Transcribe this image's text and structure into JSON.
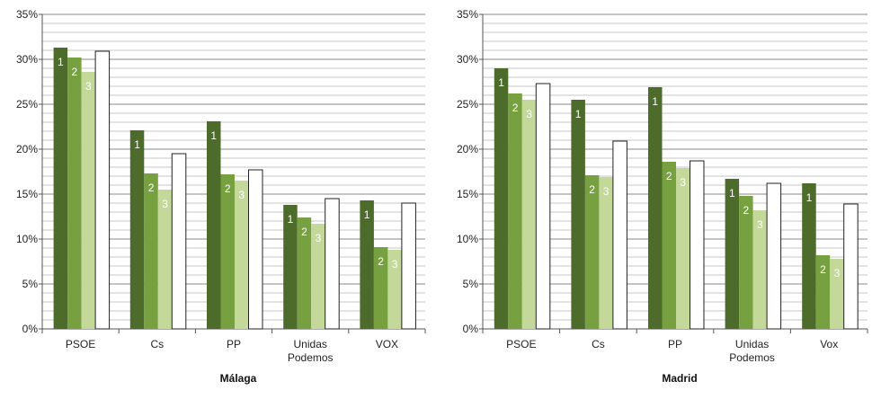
{
  "chart_data": [
    {
      "type": "bar",
      "title": "Málaga",
      "ylim": [
        0,
        35
      ],
      "y_ticks": [
        "0%",
        "5%",
        "10%",
        "15%",
        "20%",
        "25%",
        "30%",
        "35%"
      ],
      "grid": true,
      "categories": [
        [
          "PSOE"
        ],
        [
          "Cs"
        ],
        [
          "PP"
        ],
        [
          "Unidas",
          "Podemos"
        ],
        [
          "VOX"
        ]
      ],
      "series": [
        {
          "label": "1",
          "values": [
            31.3,
            22.1,
            23.1,
            13.8,
            14.3
          ]
        },
        {
          "label": "2",
          "values": [
            30.2,
            17.3,
            17.2,
            12.4,
            9.1
          ]
        },
        {
          "label": "3",
          "values": [
            28.6,
            15.5,
            16.5,
            11.7,
            8.8
          ]
        },
        {
          "label": "",
          "values": [
            30.9,
            19.5,
            17.7,
            14.5,
            14.0
          ]
        }
      ]
    },
    {
      "type": "bar",
      "title": "Madrid",
      "ylim": [
        0,
        35
      ],
      "y_ticks": [
        "0%",
        "5%",
        "10%",
        "15%",
        "20%",
        "25%",
        "30%",
        "35%"
      ],
      "grid": true,
      "categories": [
        [
          "PSOE"
        ],
        [
          "Cs"
        ],
        [
          "PP"
        ],
        [
          "Unidas",
          "Podemos"
        ],
        [
          "Vox"
        ]
      ],
      "series": [
        {
          "label": "1",
          "values": [
            29.0,
            25.5,
            26.9,
            16.7,
            16.2
          ]
        },
        {
          "label": "2",
          "values": [
            26.2,
            17.1,
            18.6,
            14.8,
            8.2
          ]
        },
        {
          "label": "3",
          "values": [
            25.5,
            16.9,
            17.9,
            13.2,
            7.8
          ]
        },
        {
          "label": "",
          "values": [
            27.3,
            20.9,
            18.7,
            16.2,
            13.9
          ]
        }
      ]
    }
  ],
  "colors": [
    "#4d6b2a",
    "#77a040",
    "#c4d89a",
    "#ffffff"
  ]
}
